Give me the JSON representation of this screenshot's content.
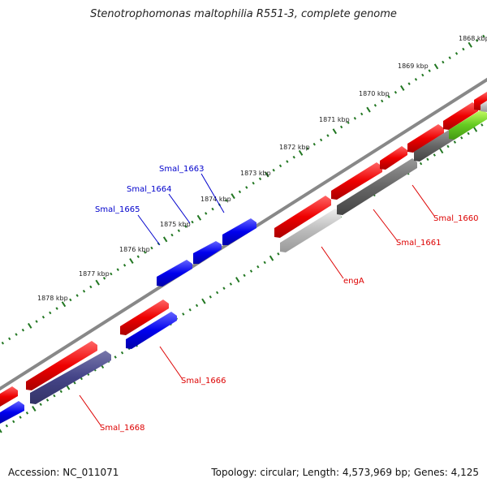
{
  "title": "Stenotrophomonas maltophilia R551-3, complete genome",
  "footer": {
    "accession": "Accession: NC_011071",
    "summary": "Topology: circular; Length: 4,573,969 bp; Genes: 4,125"
  },
  "colors": {
    "forward_gene": "#ff0000",
    "reverse_gene": "#0000ff",
    "gray_gene": "#666666",
    "light_gray_gene": "#bbbbbb",
    "purple_gene": "#444488",
    "green_gene": "#66cc22",
    "label_red": "#dd0000",
    "label_blue": "#0000cc",
    "ruler_green": "#227722",
    "backbone": "#888888"
  },
  "ruler": {
    "ticks": [
      {
        "label": "1868 kbp"
      },
      {
        "label": "1869 kbp"
      },
      {
        "label": "1870 kbp"
      },
      {
        "label": "1871 kbp"
      },
      {
        "label": "1872 kbp"
      },
      {
        "label": "1873 kbp"
      },
      {
        "label": "1874 kbp"
      },
      {
        "label": "1875 kbp"
      },
      {
        "label": "1876 kbp"
      },
      {
        "label": "1877 kbp"
      },
      {
        "label": "1878 kbp"
      }
    ]
  },
  "gene_labels": [
    {
      "label": "Smal_1663",
      "color": "blue"
    },
    {
      "label": "Smal_1664",
      "color": "blue"
    },
    {
      "label": "Smal_1665",
      "color": "blue"
    },
    {
      "label": "Smal_1660",
      "color": "red"
    },
    {
      "label": "Smal_1661",
      "color": "red"
    },
    {
      "label": "engA",
      "color": "red"
    },
    {
      "label": "Smal_1666",
      "color": "red"
    },
    {
      "label": "Smal_1668",
      "color": "red"
    }
  ]
}
